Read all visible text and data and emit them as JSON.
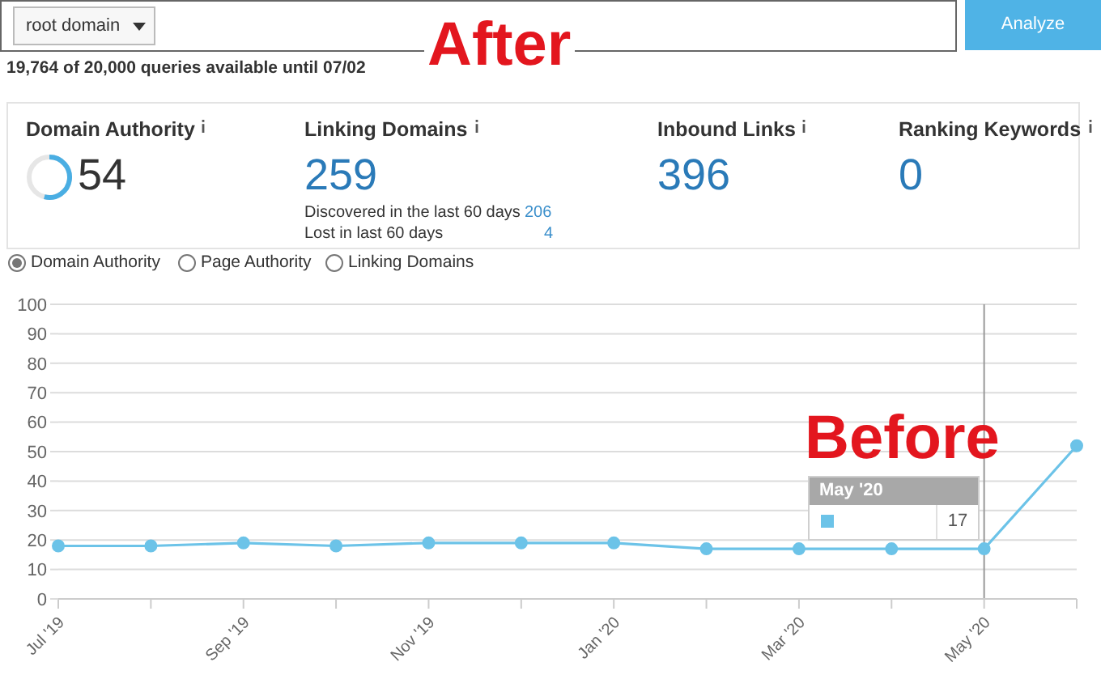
{
  "chart_data": [
    {
      "type": "other",
      "annotations": [
        "root domain",
        "Analyze",
        "19,764 of 20,000 queries available until 07/02",
        "After",
        "Domain Authority",
        "54",
        "Linking Domains",
        "259",
        "Discovered in the last 60 days",
        "206",
        "Lost in last 60 days",
        "4",
        "Inbound Links",
        "396",
        "Ranking Keywords",
        "0",
        "Domain Authority",
        "Page Authority",
        "Linking Domains"
      ]
    },
    {
      "type": "line",
      "categories": [
        "Jul '19",
        null,
        "Sep '19",
        null,
        "Nov '19",
        null,
        "Jan '20",
        null,
        "Mar '20",
        null,
        "May '20",
        null
      ],
      "series": [
        {
          "color": "#6cc3e8",
          "values": [
            18,
            18,
            19,
            18,
            19,
            19,
            19,
            17,
            17,
            17,
            17,
            52
          ]
        }
      ],
      "ylim": [
        0,
        100
      ],
      "yticks": [
        0,
        10,
        20,
        30,
        40,
        50,
        60,
        70,
        80,
        90,
        100
      ],
      "grid": "y",
      "marker": "circle",
      "line_style": "solid",
      "annotations": [
        "Before",
        "May '20",
        "17"
      ],
      "ref_lines": [
        {
          "axis": "x",
          "value": "May '20",
          "color": "#999999"
        }
      ]
    }
  ]
}
